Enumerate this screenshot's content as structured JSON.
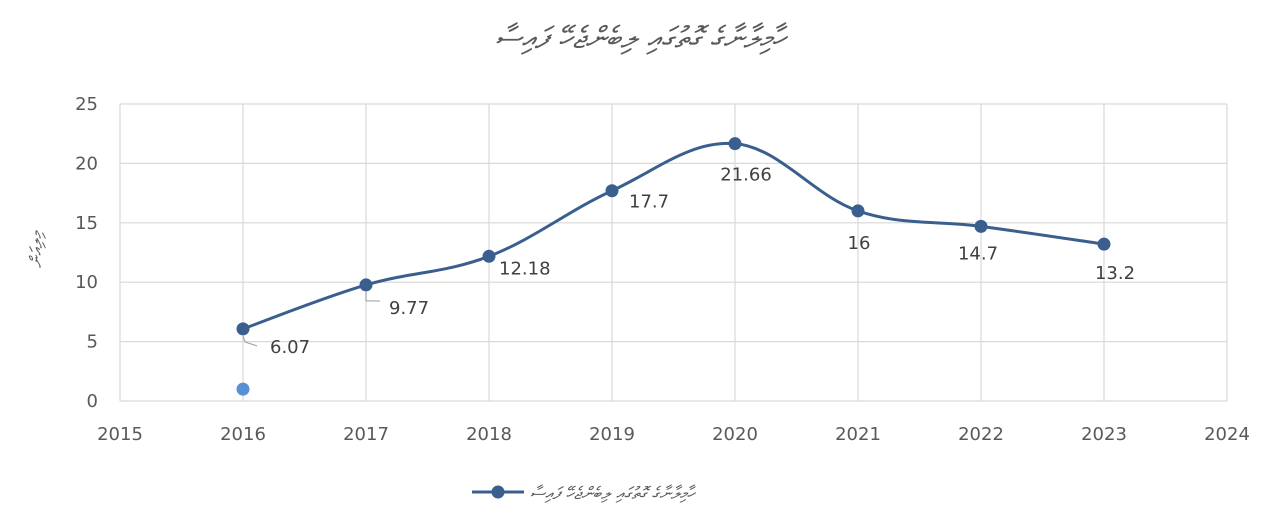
{
  "chart_data": {
    "type": "line",
    "title": "ހާމިލާނާގެ ގޮތުގައި ލިބެންޖެހޭ ފައިސާ",
    "ylabel": "މިލިއަން",
    "xlabel": "",
    "x_ticks": [
      "2015",
      "2016",
      "2017",
      "2018",
      "2019",
      "2020",
      "2021",
      "2022",
      "2023",
      "2024"
    ],
    "y_ticks": [
      "0",
      "5",
      "10",
      "15",
      "20",
      "25"
    ],
    "xlim": [
      2015,
      2024
    ],
    "ylim": [
      0,
      25
    ],
    "grid": true,
    "legend_position": "bottom",
    "series": [
      {
        "name": "ހާމިލާނާގެ ގޮތުގައި ލިބެންޖެހޭ ފައިސާ",
        "color": "#3a5f8f",
        "smooth": true,
        "x": [
          2016,
          2017,
          2018,
          2019,
          2020,
          2021,
          2022,
          2023
        ],
        "y": [
          6.07,
          9.77,
          12.18,
          17.7,
          21.66,
          16,
          14.7,
          13.2
        ],
        "labels": [
          "6.07",
          "9.77",
          "12.18",
          "17.7",
          "21.66",
          "16",
          "14.7",
          "13.2"
        ]
      }
    ],
    "extra_points": [
      {
        "x": 2016,
        "y": 1,
        "color": "#5b8fd4"
      }
    ]
  }
}
